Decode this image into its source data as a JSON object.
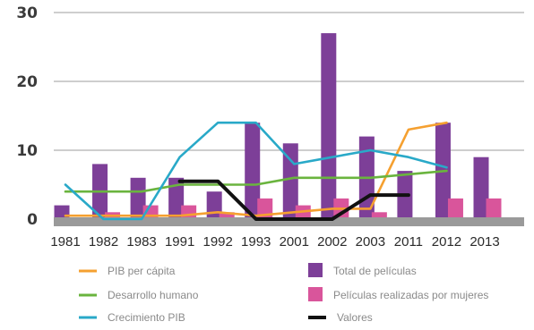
{
  "chart_data": {
    "type": "bar",
    "categories": [
      "1981",
      "1982",
      "1983",
      "1991",
      "1992",
      "1993",
      "2001",
      "2002",
      "2003",
      "2011",
      "2012",
      "2013"
    ],
    "yticks": [
      "30",
      "20",
      "10",
      "0"
    ],
    "ylim": [
      0,
      30
    ],
    "grid": true,
    "legend_position": "bottom",
    "series": [
      {
        "name": "Total de películas",
        "kind": "bar",
        "color": "#7d3f98",
        "values": [
          2,
          8,
          6,
          6,
          4,
          14,
          11,
          27,
          12,
          7,
          14,
          9
        ]
      },
      {
        "name": "Películas realizadas por mujeres",
        "kind": "bar",
        "color": "#d9559b",
        "values": [
          0,
          1,
          2,
          2,
          1,
          3,
          2,
          3,
          1,
          0,
          3,
          3
        ]
      },
      {
        "name": "PIB per cápita",
        "kind": "line",
        "color": "#f5a030",
        "values": [
          0.5,
          0.5,
          0.5,
          0.5,
          1,
          0.5,
          1,
          1.5,
          1.5,
          13,
          14,
          null
        ]
      },
      {
        "name": "Desarrollo humano",
        "kind": "line",
        "color": "#6ab43e",
        "values": [
          4,
          4,
          4,
          5,
          5,
          5,
          6,
          6,
          6,
          6.5,
          7,
          null
        ]
      },
      {
        "name": "Crecimiento PIB",
        "kind": "line",
        "color": "#29a9c8",
        "values": [
          5,
          0,
          0,
          9,
          14,
          14,
          8,
          9,
          10,
          9,
          7.5,
          null
        ]
      },
      {
        "name": "Valores",
        "kind": "line",
        "color": "#111111",
        "values": [
          null,
          null,
          null,
          5.5,
          5.5,
          0,
          0,
          0,
          3.5,
          3.5,
          null,
          null
        ]
      }
    ],
    "legend_order": [
      "PIB per cápita",
      "Total de películas",
      "Desarrollo humano",
      "Películas realizadas por mujeres",
      "Crecimiento PIB",
      "Valores"
    ]
  }
}
